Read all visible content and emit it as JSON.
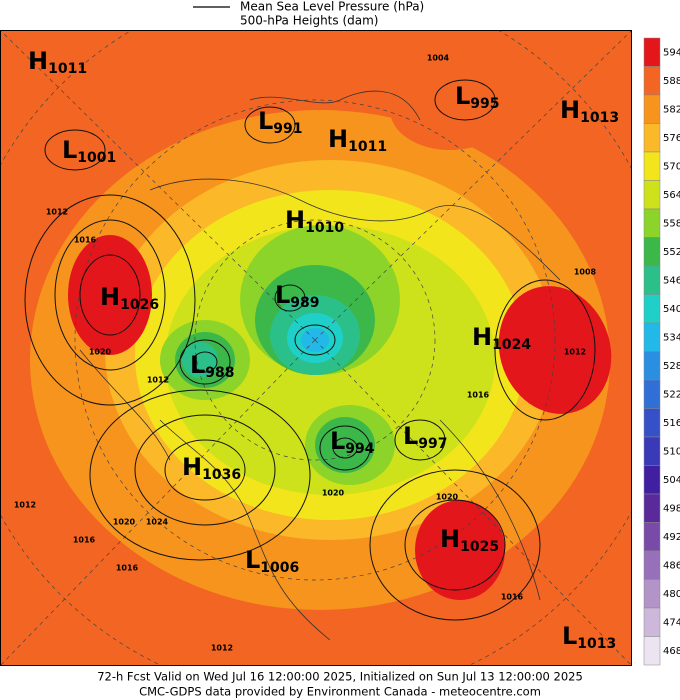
{
  "legend": {
    "lines": [
      "Mean Sea Level Pressure (hPa)",
      "500-hPa Heights (dam)"
    ]
  },
  "colorbar": {
    "levels": [
      594,
      588,
      582,
      576,
      570,
      564,
      558,
      552,
      546,
      540,
      534,
      528,
      522,
      516,
      510,
      504,
      498,
      492,
      486,
      480,
      474,
      468
    ],
    "colors": [
      "#e3161c",
      "#f26522",
      "#f7941d",
      "#fbb829",
      "#f3e51c",
      "#cde21b",
      "#8cd32a",
      "#3cb84a",
      "#2bc08a",
      "#1fd0c8",
      "#22b8e8",
      "#2a8fe0",
      "#2f6fd6",
      "#3550c8",
      "#3a3ab8",
      "#4020a0",
      "#5a2a9a",
      "#7a4aa8",
      "#9670b8",
      "#b294c8",
      "#cdb8dc",
      "#ece4f0"
    ]
  },
  "centers": [
    {
      "kind": "H",
      "value": "1011"
    },
    {
      "kind": "L",
      "value": "1001"
    },
    {
      "kind": "L",
      "value": "991"
    },
    {
      "kind": "H",
      "value": "1011"
    },
    {
      "kind": "L",
      "value": "995"
    },
    {
      "kind": "H",
      "value": "1013"
    },
    {
      "kind": "H",
      "value": "1010"
    },
    {
      "kind": "H",
      "value": "1026"
    },
    {
      "kind": "L",
      "value": "989"
    },
    {
      "kind": "H",
      "value": "1024"
    },
    {
      "kind": "L",
      "value": "988"
    },
    {
      "kind": "L",
      "value": "994"
    },
    {
      "kind": "L",
      "value": "997"
    },
    {
      "kind": "H",
      "value": "1036"
    },
    {
      "kind": "H",
      "value": "1025"
    },
    {
      "kind": "L",
      "value": "1006"
    },
    {
      "kind": "L",
      "value": "1013"
    }
  ],
  "isobar_labels": [
    "1004",
    "1012",
    "1016",
    "1020",
    "1012",
    "1016",
    "1012",
    "1008",
    "1020",
    "1020",
    "1024",
    "1020",
    "1016",
    "1016",
    "1012",
    "1016",
    "1012"
  ],
  "footer": [
    "72-h Fcst Valid on Wed Jul 16 12:00:00 2025, Initialized on Sun Jul 13 12:00:00 2025",
    "CMC-GDPS data provided by Environment Canada - meteocentre.com"
  ]
}
